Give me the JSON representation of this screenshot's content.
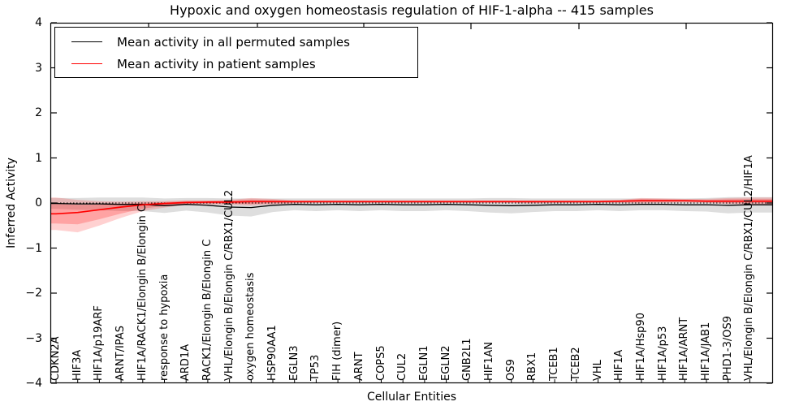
{
  "chart_data": {
    "type": "line",
    "title": "Hypoxic and oxygen homeostasis regulation of HIF-1-alpha -- 415 samples",
    "xlabel": "Cellular Entities",
    "ylabel": "Inferred Activity",
    "ylim": [
      -4,
      4
    ],
    "yticks": [
      4,
      3,
      2,
      1,
      0,
      -1,
      -2,
      -3,
      -4
    ],
    "grid": false,
    "legend_position": "upper left",
    "zero_reference_line": true,
    "categories": [
      "CDKN2A",
      "HIF3A",
      "HIF1A/p19ARF",
      "ARNT/IPAS",
      "HIF1A/RACK1/Elongin B/Elongin C",
      "response to hypoxia",
      "ARD1A",
      "RACK1/Elongin B/Elongin C",
      "VHL/Elongin B/Elongin C/RBX1/CUL2",
      "oxygen homeostasis",
      "HSP90AA1",
      "EGLN3",
      "TP53",
      "FIH (dimer)",
      "ARNT",
      "COPS5",
      "CUL2",
      "EGLN1",
      "EGLN2",
      "GNB2L1",
      "HIF1AN",
      "OS9",
      "RBX1",
      "TCEB1",
      "TCEB2",
      "VHL",
      "HIF1A",
      "HIF1A/Hsp90",
      "HIF1A/p53",
      "HIF1A/ARNT",
      "HIF1A/JAB1",
      "PHD1-3/OS9",
      "VHL/Elongin B/Elongin C/RBX1/CUL2/HIF1A"
    ],
    "series": [
      {
        "name": "Mean activity in all permuted samples",
        "color": "#000000",
        "band_color": "#000000",
        "band_opacity": 0.13,
        "values": [
          -0.01,
          -0.02,
          -0.02,
          -0.03,
          -0.03,
          -0.06,
          -0.03,
          -0.05,
          -0.09,
          -0.1,
          -0.05,
          -0.03,
          -0.04,
          -0.03,
          -0.04,
          -0.03,
          -0.04,
          -0.04,
          -0.03,
          -0.04,
          -0.05,
          -0.06,
          -0.05,
          -0.04,
          -0.04,
          -0.03,
          -0.04,
          -0.03,
          -0.03,
          -0.04,
          -0.04,
          -0.05,
          -0.04
        ],
        "band_hi": [
          0.11,
          0.11,
          0.12,
          0.12,
          0.12,
          0.1,
          0.11,
          0.11,
          0.1,
          0.1,
          0.1,
          0.1,
          0.1,
          0.1,
          0.1,
          0.1,
          0.1,
          0.1,
          0.1,
          0.1,
          0.11,
          0.11,
          0.1,
          0.1,
          0.1,
          0.1,
          0.1,
          0.1,
          0.1,
          0.1,
          0.11,
          0.13,
          0.13
        ],
        "band_lo": [
          -0.13,
          -0.15,
          -0.16,
          -0.18,
          -0.18,
          -0.22,
          -0.17,
          -0.21,
          -0.28,
          -0.3,
          -0.2,
          -0.16,
          -0.18,
          -0.16,
          -0.18,
          -0.16,
          -0.18,
          -0.18,
          -0.16,
          -0.18,
          -0.21,
          -0.23,
          -0.2,
          -0.18,
          -0.18,
          -0.16,
          -0.18,
          -0.16,
          -0.16,
          -0.18,
          -0.19,
          -0.23,
          -0.21
        ]
      },
      {
        "name": "Mean activity in patient samples",
        "color": "#ff0000",
        "band_color": "#ff0000",
        "band_opacity": 0.18,
        "values": [
          -0.24,
          -0.21,
          -0.15,
          -0.09,
          -0.04,
          -0.01,
          0.01,
          0.02,
          0.02,
          0.03,
          0.03,
          0.03,
          0.03,
          0.03,
          0.03,
          0.03,
          0.03,
          0.03,
          0.03,
          0.03,
          0.03,
          0.03,
          0.03,
          0.03,
          0.03,
          0.03,
          0.04,
          0.05,
          0.05,
          0.05,
          0.04,
          0.04,
          0.04
        ],
        "band_hi": [
          0.12,
          0.07,
          0.04,
          0.03,
          0.04,
          0.04,
          0.06,
          0.06,
          0.07,
          0.11,
          0.09,
          0.06,
          0.06,
          0.06,
          0.06,
          0.06,
          0.06,
          0.06,
          0.06,
          0.06,
          0.06,
          0.06,
          0.06,
          0.06,
          0.06,
          0.06,
          0.07,
          0.11,
          0.1,
          0.09,
          0.09,
          0.11,
          0.12
        ],
        "band_lo": [
          -0.6,
          -0.65,
          -0.5,
          -0.33,
          -0.18,
          -0.1,
          -0.04,
          -0.03,
          -0.04,
          -0.06,
          -0.03,
          -0.01,
          0.0,
          0.0,
          0.0,
          0.0,
          0.0,
          0.0,
          0.0,
          0.0,
          0.0,
          0.0,
          -0.01,
          0.0,
          0.0,
          0.0,
          0.0,
          -0.01,
          0.0,
          0.01,
          0.0,
          -0.02,
          -0.03
        ]
      }
    ]
  }
}
